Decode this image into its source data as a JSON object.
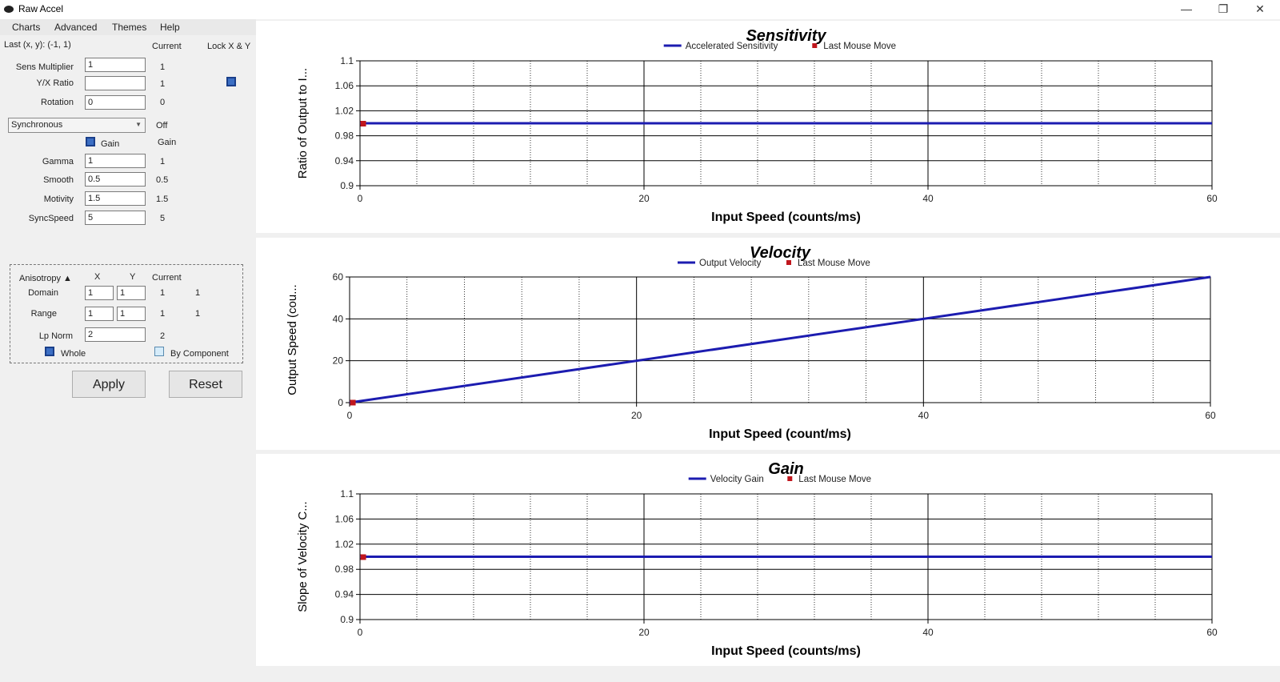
{
  "window": {
    "title": "Raw Accel",
    "minimize_glyph": "—",
    "restore_glyph": "❐",
    "close_glyph": "✕"
  },
  "menu": [
    "Charts",
    "Advanced",
    "Themes",
    "Help"
  ],
  "panel": {
    "last_xy": "Last (x, y): (-1, 1)",
    "current_header": "Current",
    "lock_xy": "Lock X & Y",
    "lock_xy_checked": true,
    "fields": [
      {
        "label": "Sens Multiplier",
        "value": "1",
        "current": "1"
      },
      {
        "label": "Y/X Ratio",
        "value": "",
        "current": "1"
      },
      {
        "label": "Rotation",
        "value": "0",
        "current": "0"
      }
    ],
    "mode": {
      "selected": "Synchronous",
      "current": "Off"
    },
    "gain": {
      "label": "Gain",
      "checked": true,
      "current": "Gain"
    },
    "params": [
      {
        "label": "Gamma",
        "value": "1",
        "current": "1"
      },
      {
        "label": "Smooth",
        "value": "0.5",
        "current": "0.5"
      },
      {
        "label": "Motivity",
        "value": "1.5",
        "current": "1.5"
      },
      {
        "label": "SyncSpeed",
        "value": "5",
        "current": "5"
      }
    ],
    "anisotropy": {
      "title": "Anisotropy ▲",
      "col_x": "X",
      "col_y": "Y",
      "col_current": "Current",
      "domain": {
        "label": "Domain",
        "x": "1",
        "y": "1",
        "cur_x": "1",
        "cur_y": "1"
      },
      "range": {
        "label": "Range",
        "x": "1",
        "y": "1",
        "cur_x": "1",
        "cur_y": "1"
      },
      "lp_norm": {
        "label": "Lp Norm",
        "value": "2",
        "current": "2"
      },
      "whole": {
        "label": "Whole",
        "checked": true
      },
      "by_component": {
        "label": "By Component",
        "checked": false
      }
    },
    "apply_label": "Apply",
    "reset_label": "Reset"
  },
  "colors": {
    "line": "#1c1cb0",
    "marker": "#c0161d",
    "grid": "#000000"
  },
  "chart_data": [
    {
      "type": "line",
      "title": "Sensitivity",
      "xlabel": "Input Speed (counts/ms)",
      "ylabel": "Ratio of Output to I...",
      "xlim": [
        0,
        60
      ],
      "ylim": [
        0.9,
        1.1
      ],
      "xticks": [
        0,
        20,
        40,
        60
      ],
      "yticks": [
        0.9,
        0.94,
        0.98,
        1.02,
        1.06,
        1.1
      ],
      "ytick_labels": [
        "0.9",
        "0.94",
        "0.98",
        "1.02",
        "1.06",
        "1.1"
      ],
      "grid": true,
      "legend": "top-center",
      "series": [
        {
          "name": "Accelerated Sensitivity",
          "x": [
            0,
            60
          ],
          "y": [
            1,
            1
          ]
        },
        {
          "name": "Last Mouse Move",
          "x": [
            0.2
          ],
          "y": [
            1
          ],
          "marker": true
        }
      ]
    },
    {
      "type": "line",
      "title": "Velocity",
      "xlabel": "Input Speed (count/ms)",
      "ylabel": "Output Speed (cou...",
      "xlim": [
        0,
        60
      ],
      "ylim": [
        0,
        60
      ],
      "xticks": [
        0,
        20,
        40,
        60
      ],
      "yticks": [
        0,
        20,
        40,
        60
      ],
      "ytick_labels": [
        "0",
        "20",
        "40",
        "60"
      ],
      "grid": true,
      "legend": "top-center",
      "series": [
        {
          "name": "Output Velocity",
          "x": [
            0,
            60
          ],
          "y": [
            0,
            60
          ]
        },
        {
          "name": "Last Mouse Move",
          "x": [
            0.2
          ],
          "y": [
            0.2
          ],
          "marker": true
        }
      ]
    },
    {
      "type": "line",
      "title": "Gain",
      "xlabel": "Input Speed (counts/ms)",
      "ylabel": "Slope of Velocity C...",
      "xlim": [
        0,
        60
      ],
      "ylim": [
        0.9,
        1.1
      ],
      "xticks": [
        0,
        20,
        40,
        60
      ],
      "yticks": [
        0.9,
        0.94,
        0.98,
        1.02,
        1.06,
        1.1
      ],
      "ytick_labels": [
        "0.9",
        "0.94",
        "0.98",
        "1.02",
        "1.06",
        "1.1"
      ],
      "grid": true,
      "legend": "top-center",
      "series": [
        {
          "name": "Velocity Gain",
          "x": [
            0,
            60
          ],
          "y": [
            1,
            1
          ]
        },
        {
          "name": "Last Mouse Move",
          "x": [
            0.2
          ],
          "y": [
            1
          ],
          "marker": true
        }
      ]
    }
  ]
}
